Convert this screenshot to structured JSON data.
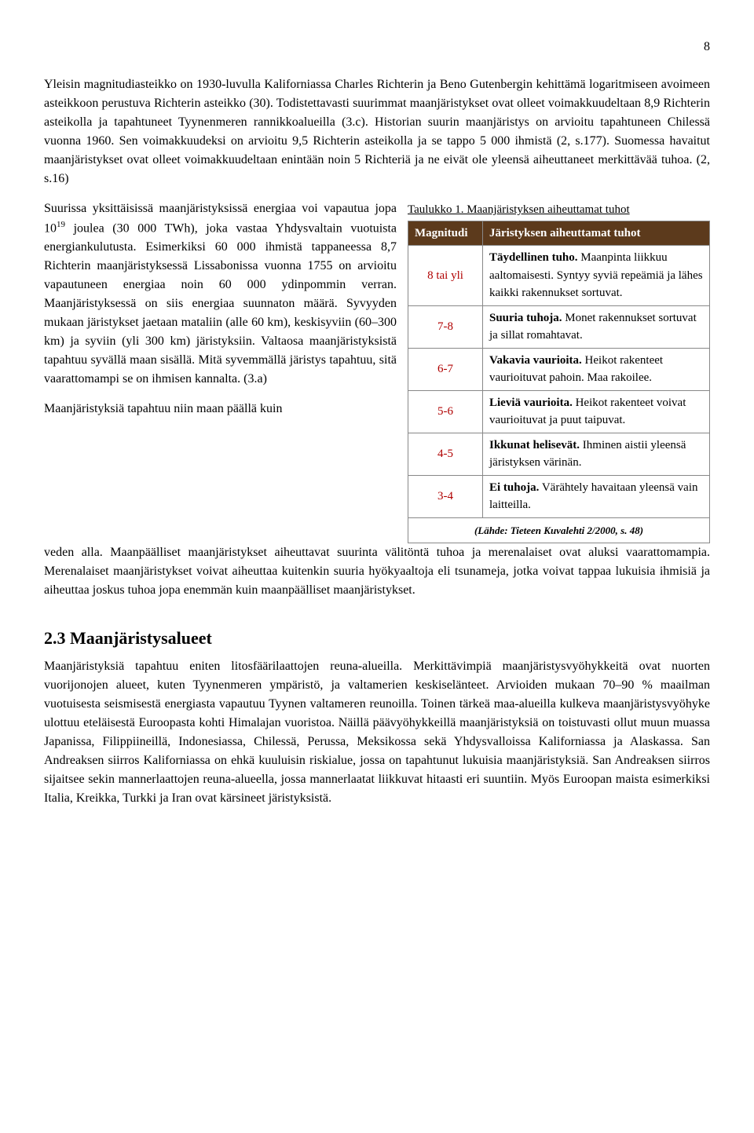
{
  "page_number": "8",
  "para1": "Yleisin magnitudiasteikko on 1930-luvulla Kaliforniassa Charles Richterin ja Beno Gutenbergin kehittämä logaritmiseen avoimeen asteikkoon perustuva Richterin asteikko (30). Todistettavasti suurimmat maanjäristykset ovat olleet voimakkuudeltaan 8,9 Richterin asteikolla ja tapahtuneet Tyynenmeren rannikkoalueilla (3.c). Historian suurin maanjäristys on arvioitu tapahtuneen Chilessä vuonna 1960. Sen voimakkuudeksi on arvioitu 9,5 Richterin asteikolla ja se tappo 5 000 ihmistä (2, s.177). Suomessa havaitut maanjäristykset ovat olleet voimakkuudeltaan enintään noin 5 Richteriä ja ne eivät ole yleensä aiheuttaneet merkittävää tuhoa. (2, s.16)",
  "para2_prefix": "Suurissa yksittäisissä maanjäristyksissä energiaa voi vapautua jopa 10",
  "para2_exp": "19",
  "para2_rest": " joulea (30 000 TWh), joka vastaa Yhdysvaltain vuotuista energiankulutusta. Esimerkiksi 60 000 ihmistä tappaneessa 8,7 Richterin maanjäristyksessä Lissabonissa vuonna 1755 on arvioitu vapautuneen energiaa noin 60 000 ydinpommin verran. Maanjäristyksessä on siis energiaa suunnaton määrä. Syvyyden mukaan järistykset jaetaan mataliin (alle 60 km), keskisyviin (60–300 km) ja syviin (yli 300 km) järistyksiin. Valtaosa maanjäristyksistä tapahtuu syvällä maan sisällä. Mitä syvemmällä järistys tapahtuu, sitä vaarattomampi se on ihmisen kannalta. (3.a)",
  "para3_lead": "Maanjäristyksiä tapahtuu niin maan päällä kuin",
  "para3": "veden alla. Maanpäälliset maanjäristykset aiheuttavat suurinta välitöntä tuhoa ja merenalaiset ovat aluksi vaarattomampia. Merenalaiset maanjäristykset voivat aiheuttaa kuitenkin suuria hyökyaaltoja eli tsunameja, jotka voivat tappaa lukuisia ihmisiä ja aiheuttaa joskus tuhoa jopa enemmän kuin maanpäälliset maanjäristykset.",
  "table": {
    "title": "Taulukko 1. Maanjäristyksen aiheuttamat tuhot",
    "header_mag": "Magnitudi",
    "header_eff": "Järistyksen aiheuttamat tuhot",
    "rows": [
      {
        "mag": "8 tai yli",
        "bold": "Täydellinen tuho.",
        "rest": " Maanpinta liikkuu aaltomaisesti. Syntyy syviä repeämiä ja lähes kaikki rakennukset sortuvat."
      },
      {
        "mag": "7-8",
        "bold": "Suuria tuhoja.",
        "rest": " Monet rakennukset sortuvat ja sillat romahtavat."
      },
      {
        "mag": "6-7",
        "bold": "Vakavia vaurioita.",
        "rest": " Heikot rakenteet vaurioituvat pahoin. Maa rakoilee."
      },
      {
        "mag": "5-6",
        "bold": "Lieviä vaurioita.",
        "rest": " Heikot rakenteet voivat vaurioituvat ja puut taipuvat."
      },
      {
        "mag": "4-5",
        "bold": "Ikkunat helisevät.",
        "rest": " Ihminen aistii yleensä järistyksen värinän."
      },
      {
        "mag": "3-4",
        "bold": "Ei tuhoja.",
        "rest": " Värähtely havaitaan yleensä vain laitteilla."
      }
    ],
    "source": "(Lähde: Tieteen Kuvalehti 2/2000, s. 48)"
  },
  "heading": "2.3 Maanjäristysalueet",
  "para4": "Maanjäristyksiä tapahtuu eniten litosfäärilaattojen reuna-alueilla. Merkittävimpiä maanjäristysvyöhykkeitä ovat nuorten vuorijonojen alueet, kuten Tyynenmeren ympäristö, ja valtamerien keskiselänteet. Arvioiden mukaan 70–90 % maailman vuotuisesta seismisestä energiasta vapautuu Tyynen valtameren reunoilla. Toinen tärkeä maa-alueilla kulkeva maanjäristysvyöhyke ulottuu eteläisestä Euroopasta kohti Himalajan vuoristoa. Näillä päävyöhykkeillä maanjäristyksiä on toistuvasti ollut muun muassa Japanissa, Filippiineillä, Indonesiassa, Chilessä, Perussa, Meksikossa sekä Yhdysvalloissa Kaliforniassa ja Alaskassa. San Andreaksen siirros Kaliforniassa on ehkä kuuluisin riskialue, jossa on tapahtunut lukuisia maanjäristyksiä. San Andreaksen siirros sijaitsee sekin mannerlaattojen reuna-alueella, jossa mannerlaatat liikkuvat hitaasti eri suuntiin. Myös Euroopan maista esimerkiksi Italia, Kreikka, Turkki ja Iran ovat kärsineet järistyksistä."
}
